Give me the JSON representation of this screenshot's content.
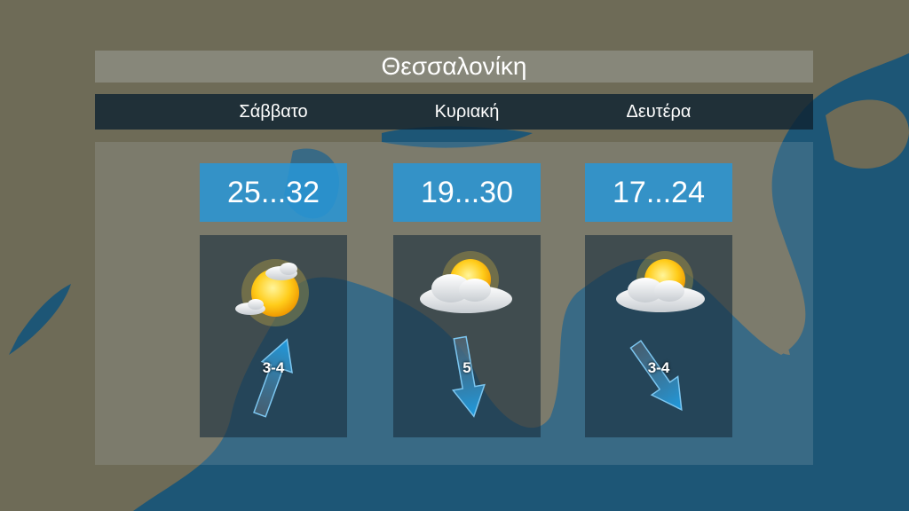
{
  "title": "Θεσσαλονίκη",
  "colors": {
    "temp_box": "#2896d7",
    "land": "#6e6b57",
    "sea": "#1d5676",
    "arrow": "#1e9be0"
  },
  "days": [
    {
      "name": "Σάββατο",
      "temp": "25...32",
      "icon": "sun-with-small-clouds-icon",
      "wind_label": "3-4",
      "wind_arrow_heading_deg": 20
    },
    {
      "name": "Κυριακή",
      "temp": "19...30",
      "icon": "sun-behind-cloud-icon",
      "wind_label": "5",
      "wind_arrow_heading_deg": 170
    },
    {
      "name": "Δευτέρα",
      "temp": "17...24",
      "icon": "sun-behind-cloud-icon",
      "wind_label": "3-4",
      "wind_arrow_heading_deg": 145
    }
  ]
}
